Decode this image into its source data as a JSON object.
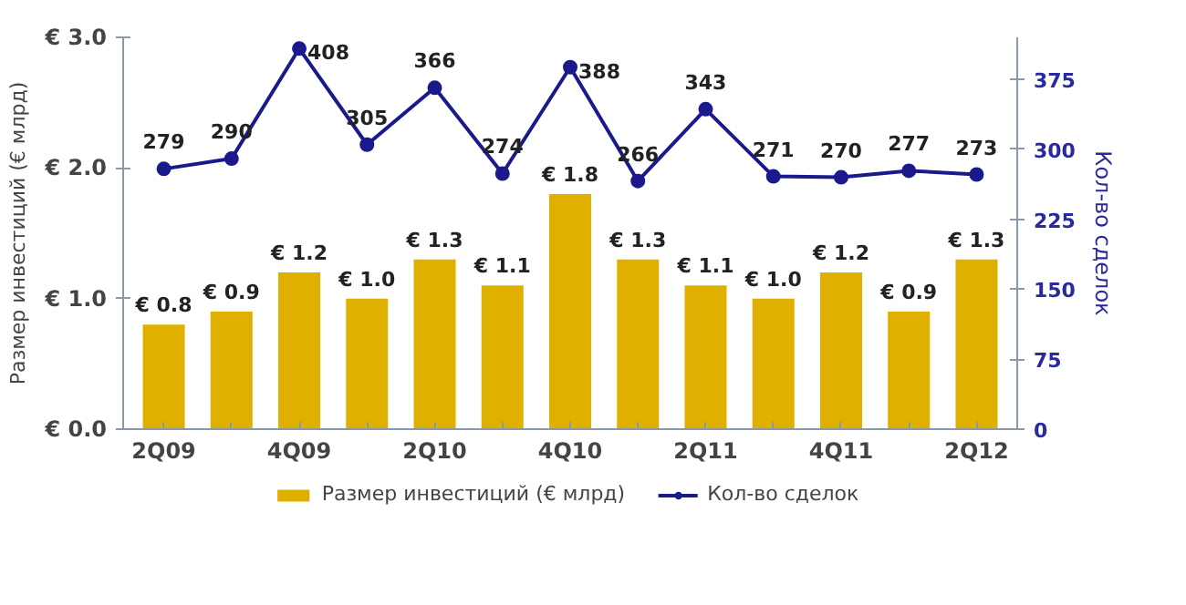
{
  "chart_data": {
    "type": "bar",
    "categories": [
      "2Q09",
      null,
      "4Q09",
      null,
      "2Q10",
      null,
      "4Q10",
      null,
      "2Q11",
      null,
      "4Q11",
      null,
      "2Q12"
    ],
    "ylabel": "Размер инвестиций (€ млрд)",
    "y2label": "Кол-во сделок",
    "ylim": [
      0,
      3.0
    ],
    "yticks": [
      {
        "value": 0,
        "label": "€ 0.0"
      },
      {
        "value": 1,
        "label": "€ 1.0"
      },
      {
        "value": 2,
        "label": "€ 2.0"
      },
      {
        "value": 3,
        "label": "€ 3.0"
      }
    ],
    "y2lim": [
      0,
      420
    ],
    "y2ticks": [
      0,
      75,
      150,
      225,
      300,
      375
    ],
    "series": [
      {
        "name": "Размер инвестиций (€ млрд)",
        "color": "#e0b000",
        "values": [
          0.8,
          0.9,
          1.2,
          1.0,
          1.3,
          1.1,
          1.8,
          1.3,
          1.1,
          1.0,
          1.2,
          0.9,
          1.3
        ],
        "value_labels": [
          "€ 0.8",
          "€ 0.9",
          "€ 1.2",
          "€ 1.0",
          "€ 1.3",
          "€ 1.1",
          "€ 1.8",
          "€ 1.3",
          "€ 1.1",
          "€ 1.0",
          "€ 1.2",
          "€ 0.9",
          "€ 1.3"
        ]
      },
      {
        "name": "Кол-во сделок",
        "type": "line",
        "axis": "y2",
        "color": "#1a1a8c",
        "marker": "circle",
        "values": [
          279,
          290,
          408,
          305,
          366,
          274,
          388,
          266,
          343,
          271,
          270,
          277,
          273
        ],
        "data_labels": true
      }
    ],
    "grid": false,
    "legend": "bottom"
  }
}
